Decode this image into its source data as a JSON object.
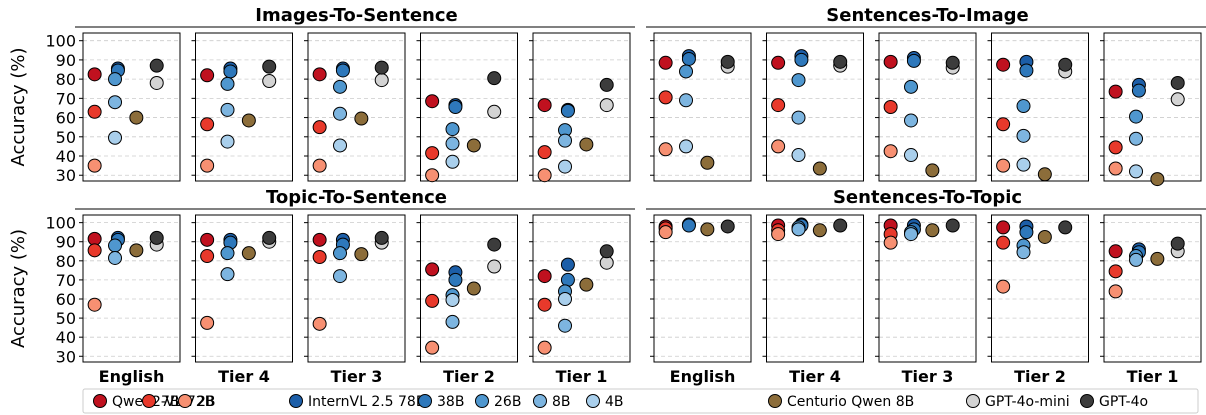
{
  "chart_data": {
    "type": "scatter",
    "ylabel": "Accuracy (%)",
    "ylim": [
      27,
      104
    ],
    "yticks": [
      30,
      40,
      50,
      60,
      70,
      80,
      90,
      100
    ],
    "grid": "y dashed",
    "legend_position": "bottom",
    "tiers": [
      "English",
      "Tier 4",
      "Tier 3",
      "Tier 2",
      "Tier 1"
    ],
    "models": [
      {
        "name": "Qwen2-VL 72B",
        "color": "#c0111f"
      },
      {
        "name": "7B",
        "color": "#e8392b"
      },
      {
        "name": "2B",
        "color": "#f79072"
      },
      {
        "name": "InternVL 2.5 78B",
        "color": "#1c5ea8"
      },
      {
        "name": "38B",
        "color": "#2e78bb"
      },
      {
        "name": "26B",
        "color": "#4f97cf"
      },
      {
        "name": "8B",
        "color": "#7db5e0"
      },
      {
        "name": "4B",
        "color": "#a9cfec"
      },
      {
        "name": "Centurio Qwen 8B",
        "color": "#8c6d3a"
      },
      {
        "name": "GPT-4o-mini",
        "color": "#d3d3d3"
      },
      {
        "name": "GPT-4o",
        "color": "#3c3c3c"
      }
    ],
    "panels": [
      {
        "title": "Images-To-Sentence",
        "values": [
          [
            82.5,
            63,
            35,
            85.5,
            84.5,
            80,
            68,
            49.5,
            60,
            78,
            87
          ],
          [
            82,
            56.5,
            35,
            85.5,
            84,
            77.5,
            64,
            47.5,
            58.5,
            79,
            86.5
          ],
          [
            82.5,
            55,
            35,
            85.5,
            84.5,
            76,
            62,
            45.5,
            59.5,
            79.5,
            86
          ],
          [
            68.5,
            41.5,
            30,
            66.5,
            65.5,
            54,
            46.5,
            37,
            45.5,
            63,
            80.5
          ],
          [
            66.5,
            42,
            30,
            64,
            63.5,
            53.5,
            48,
            34.5,
            46,
            66.5,
            77
          ]
        ]
      },
      {
        "title": "Sentences-To-Image",
        "values": [
          [
            88.5,
            70.5,
            43.5,
            92,
            90.5,
            84,
            69,
            45,
            36.5,
            86.5,
            89
          ],
          [
            88.5,
            66.5,
            45,
            92,
            90,
            79.5,
            60,
            40.5,
            33.5,
            87,
            89
          ],
          [
            89,
            65.5,
            42.5,
            91,
            89.5,
            76,
            58.5,
            40.5,
            32.5,
            86,
            88.5
          ],
          [
            87.5,
            56.5,
            35,
            89,
            84.5,
            66,
            50.5,
            35.5,
            30.5,
            84,
            87.5
          ],
          [
            73.5,
            44.5,
            33.5,
            77,
            74,
            60.5,
            49,
            32,
            28,
            69.5,
            78
          ]
        ]
      },
      {
        "title": "Topic-To-Sentence",
        "values": [
          [
            91.5,
            85.5,
            57,
            92,
            91,
            88,
            81.5,
            null,
            85.5,
            88.5,
            92
          ],
          [
            91,
            82.5,
            47.5,
            91,
            89.5,
            84,
            73,
            null,
            84,
            90,
            92
          ],
          [
            91,
            82,
            47,
            91,
            88.5,
            84,
            72,
            null,
            83.5,
            89.5,
            92
          ],
          [
            75.5,
            59,
            34.5,
            74,
            70,
            62,
            48,
            59.5,
            65.5,
            77,
            88.5
          ],
          [
            72,
            57,
            34.5,
            78,
            70,
            64,
            46,
            60,
            67.5,
            79,
            85
          ]
        ]
      },
      {
        "title": "Sentences-To-Topic",
        "values": [
          [
            98,
            97,
            95,
            99,
            98.5,
            null,
            null,
            null,
            96.5,
            null,
            98
          ],
          [
            98.5,
            96,
            94,
            99,
            98.5,
            97.5,
            96.5,
            null,
            96,
            null,
            98.5
          ],
          [
            98.5,
            94,
            89.5,
            98.5,
            96.5,
            95,
            94,
            null,
            96,
            null,
            98.5
          ],
          [
            97.5,
            89.5,
            66.5,
            98,
            95,
            88,
            84.5,
            null,
            92.5,
            null,
            97.5
          ],
          [
            85,
            74.5,
            64,
            86,
            84.5,
            82.5,
            80.5,
            null,
            81,
            85,
            89
          ]
        ]
      }
    ]
  }
}
